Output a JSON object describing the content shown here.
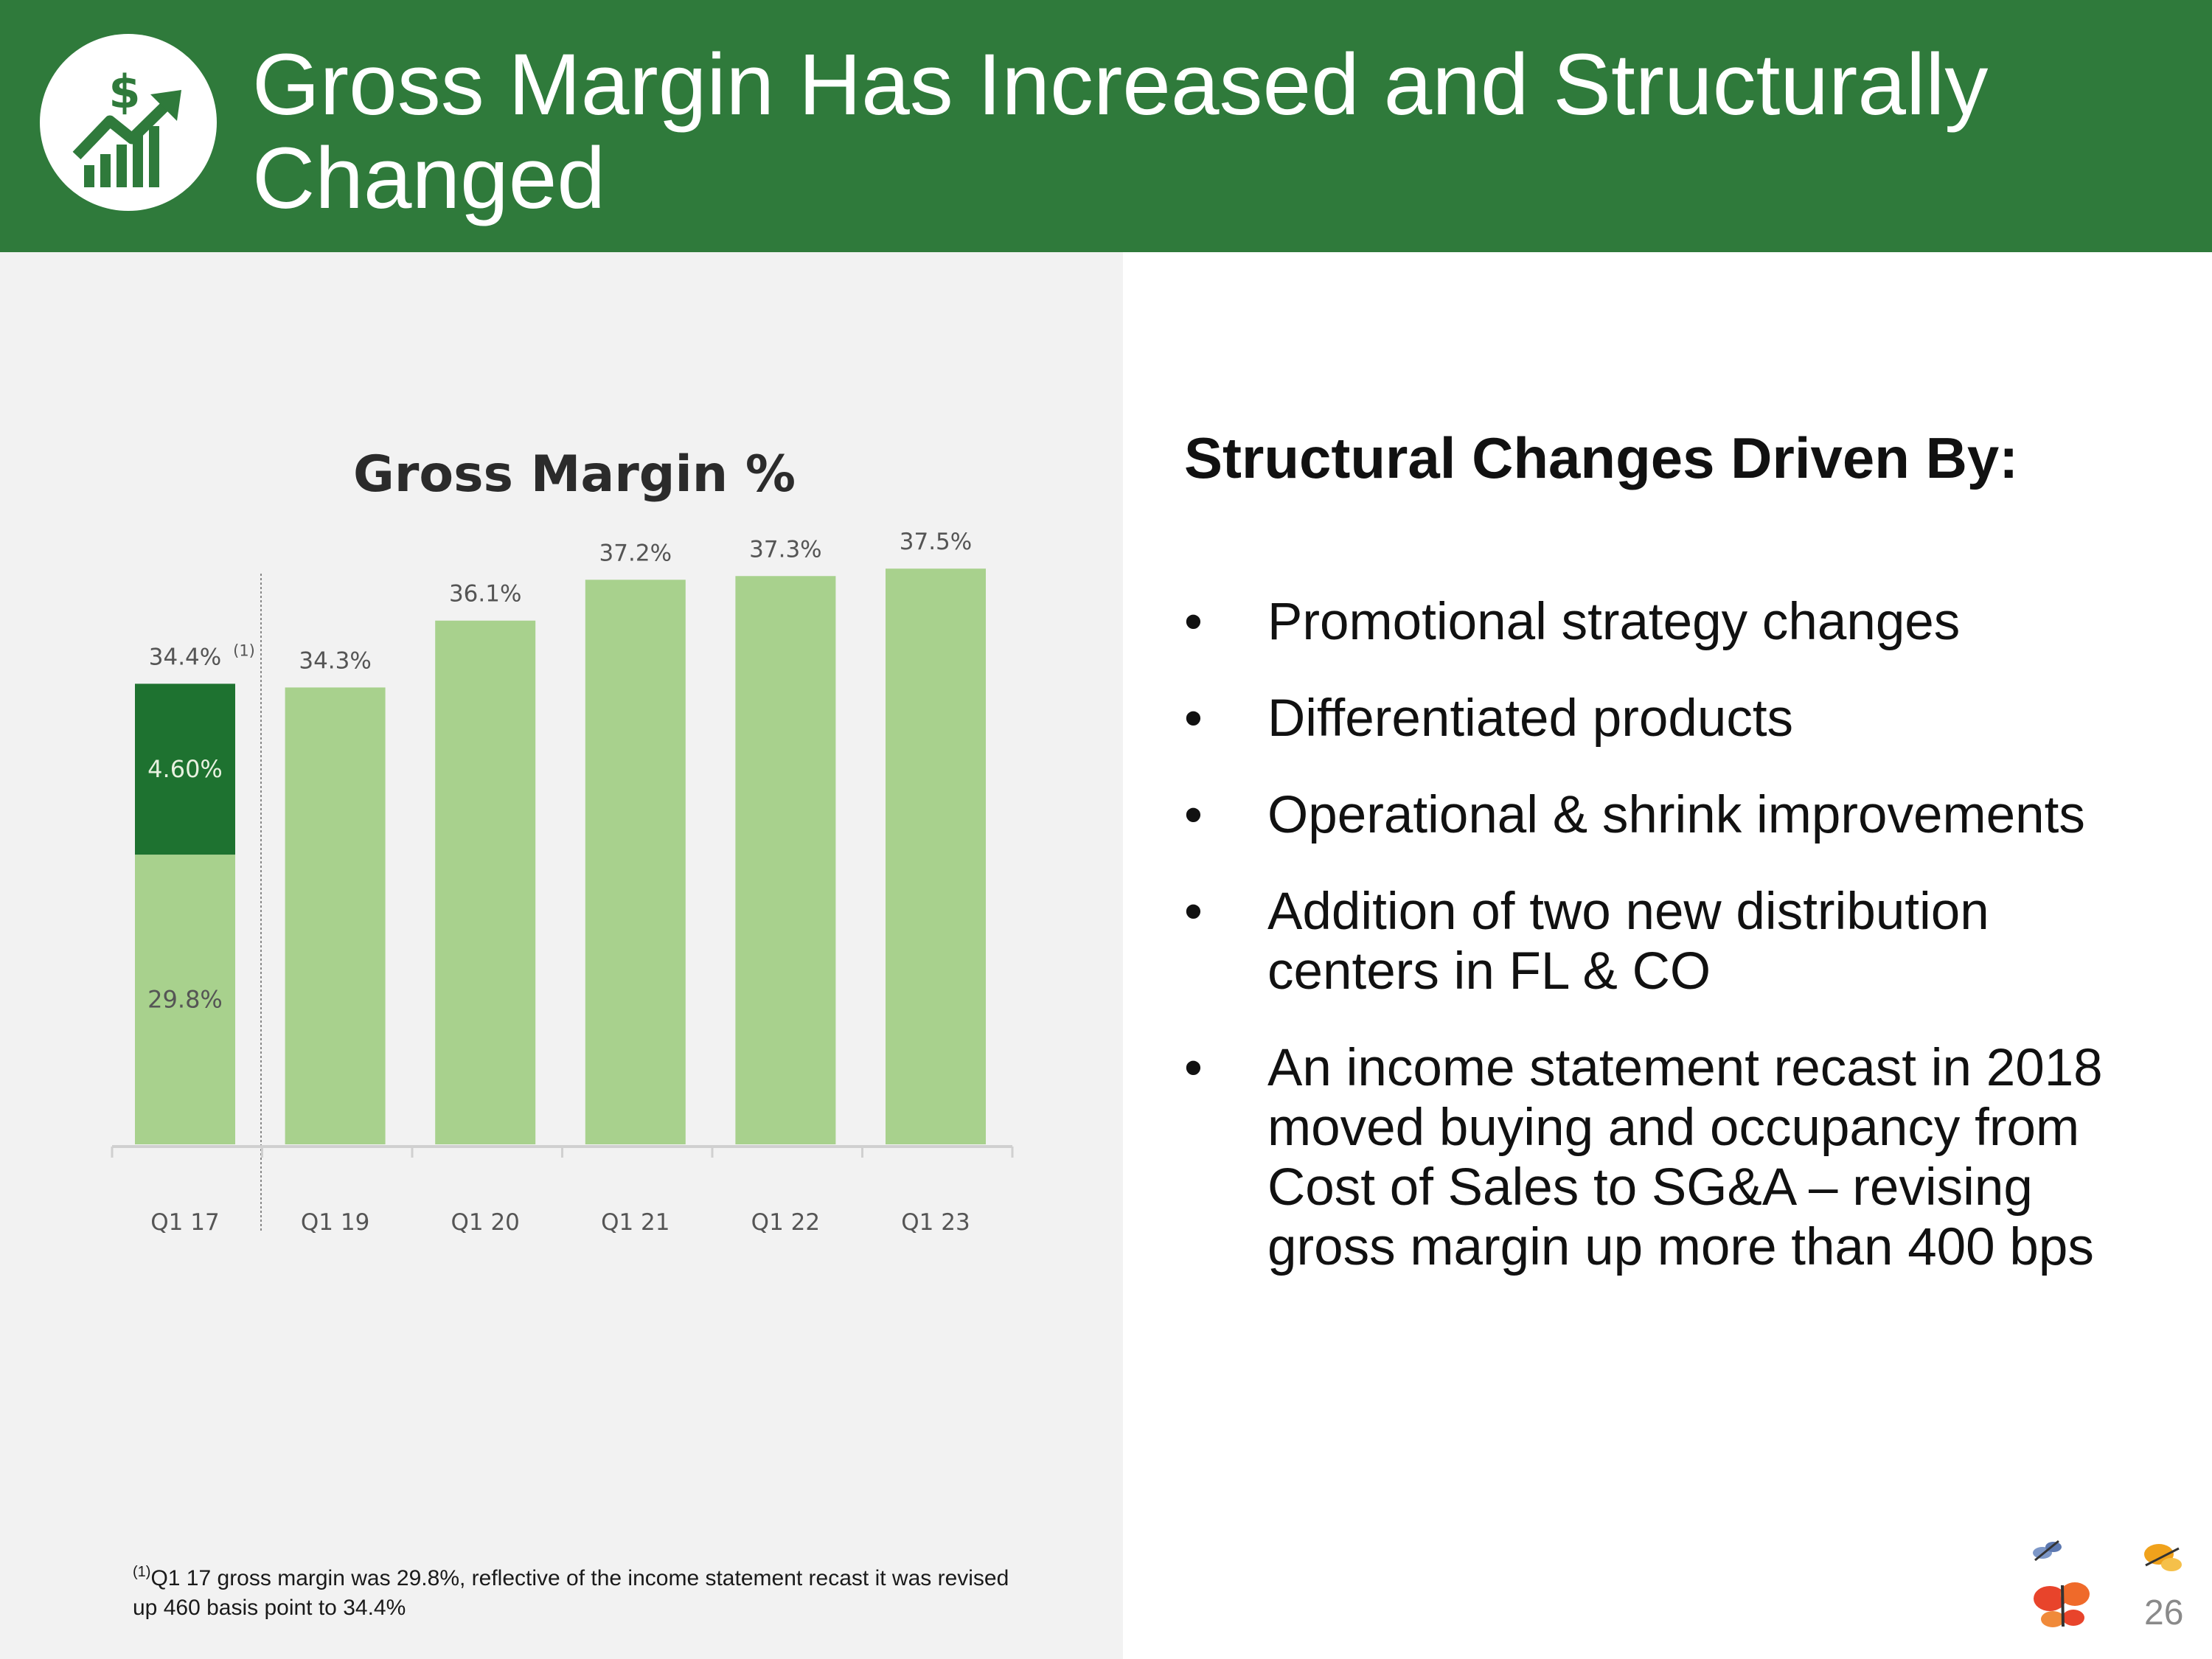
{
  "slide": {
    "title": "Gross Margin Has Increased and Structurally Changed",
    "logo_icon": "dollar-growth-chart-icon",
    "page_number": "26",
    "colors": {
      "header": "#2f7a3b",
      "bar_light": "#a8d18d",
      "bar_dark": "#1e7230",
      "left_panel": "#f2f2f2"
    }
  },
  "chart_data": {
    "type": "bar",
    "title": "Gross Margin %",
    "xlabel": "",
    "ylabel": "",
    "categories": [
      "Q1 17",
      "Q1 19",
      "Q1 20",
      "Q1 21",
      "Q1 22",
      "Q1 23"
    ],
    "values": [
      34.4,
      34.3,
      36.1,
      37.2,
      37.3,
      37.5
    ],
    "value_labels": [
      "34.4%",
      "34.3%",
      "36.1%",
      "37.2%",
      "37.3%",
      "37.5%"
    ],
    "stacked_first_bar": {
      "category": "Q1 17",
      "base_value": 29.8,
      "base_label": "29.8%",
      "added_value": 4.6,
      "added_label": "4.60%",
      "footnote_marker": "(1)"
    },
    "ylim": [
      22,
      38
    ],
    "grid": false,
    "separator_after": "Q1 17"
  },
  "footnote": {
    "marker": "(1)",
    "text": "Q1 17 gross margin was 29.8%, reflective of the income statement recast it was revised up 460 basis point to 34.4%"
  },
  "right": {
    "heading": "Structural Changes Driven By:",
    "bullet_char": "•",
    "bullets": [
      "Promotional strategy changes",
      "Differentiated products",
      "Operational  & shrink improvements",
      "Addition of two new distribution centers in FL & CO",
      "An income statement recast in 2018 moved buying and occupancy from Cost of Sales to SG&A – revising gross margin up more than 400 bps"
    ]
  }
}
